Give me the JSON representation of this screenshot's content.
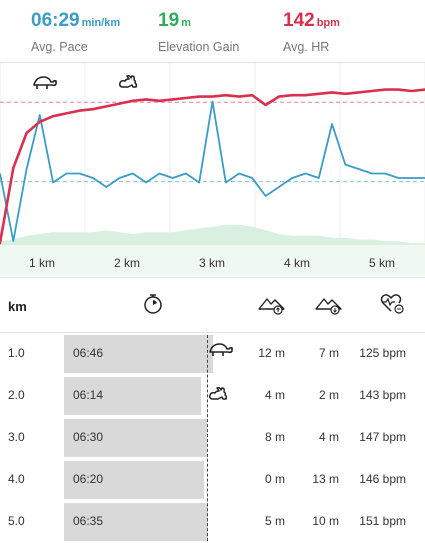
{
  "stats": {
    "pace": {
      "value": "06:29",
      "unit": "min/km",
      "label": "Avg. Pace"
    },
    "elevation": {
      "value": "19",
      "unit": "m",
      "label": "Elevation Gain"
    },
    "hr": {
      "value": "142",
      "unit": "bpm",
      "label": "Avg. HR"
    }
  },
  "colors": {
    "pace": "#3b9cc6",
    "elevation": "#2fae5a",
    "hr": "#d8304e",
    "bar": "#d9d9d9"
  },
  "chart": {
    "x_labels": [
      "1 km",
      "2 km",
      "3 km",
      "4 km",
      "5 km"
    ],
    "markers": [
      {
        "icon": "turtle-icon"
      },
      {
        "icon": "rabbit-icon"
      }
    ]
  },
  "chart_data": {
    "type": "line",
    "x_ticks": [
      "1 km",
      "2 km",
      "3 km",
      "4 km",
      "5 km"
    ],
    "series": [
      {
        "color": "#d8304e",
        "values": [
          40,
          95,
          120,
          128,
          132,
          134,
          136,
          137,
          139,
          141,
          143,
          144,
          143,
          144,
          145,
          146,
          146,
          147,
          146,
          147,
          140,
          146,
          147,
          147,
          148,
          149,
          148,
          149,
          150,
          151,
          151,
          150,
          151
        ]
      },
      {
        "color": "#3b9cc6",
        "values": [
          6.3,
          8.2,
          6.2,
          5.0,
          6.5,
          6.3,
          6.3,
          6.4,
          6.6,
          6.4,
          6.3,
          6.5,
          6.3,
          6.4,
          6.3,
          6.5,
          4.7,
          6.5,
          6.3,
          6.4,
          6.8,
          6.6,
          6.4,
          6.3,
          6.4,
          5.2,
          6.1,
          6.2,
          6.3,
          6.3,
          6.4,
          6.4,
          6.4
        ]
      },
      {
        "color": "#2fae5a",
        "values": [
          2,
          3,
          5,
          6,
          7,
          7,
          7,
          7,
          8,
          7,
          6,
          7,
          7,
          7,
          8,
          9,
          10,
          11,
          11,
          10,
          8,
          6,
          5,
          5,
          5,
          4,
          4,
          3,
          3,
          2,
          2,
          1,
          1
        ]
      }
    ]
  },
  "table": {
    "header": {
      "km": "km",
      "pace_icon": "stopwatch-icon",
      "gain_icon": "elevation-gain-icon",
      "loss_icon": "elevation-loss-icon",
      "hr_icon": "heart-rate-icon"
    },
    "rows": [
      {
        "km": "1.0",
        "pace": "06:46",
        "pace_fraction": 0.99,
        "icon": "turtle-icon",
        "gain": "12 m",
        "loss": "7 m",
        "hr": "125 bpm"
      },
      {
        "km": "2.0",
        "pace": "06:14",
        "pace_fraction": 0.91,
        "icon": "rabbit-icon",
        "gain": "4 m",
        "loss": "2 m",
        "hr": "143 bpm"
      },
      {
        "km": "3.0",
        "pace": "06:30",
        "pace_fraction": 0.95,
        "icon": "",
        "gain": "8 m",
        "loss": "4 m",
        "hr": "147 bpm"
      },
      {
        "km": "4.0",
        "pace": "06:20",
        "pace_fraction": 0.93,
        "icon": "",
        "gain": "0 m",
        "loss": "13 m",
        "hr": "146 bpm"
      },
      {
        "km": "5.0",
        "pace": "06:35",
        "pace_fraction": 0.96,
        "icon": "",
        "gain": "5 m",
        "loss": "10 m",
        "hr": "151 bpm"
      }
    ]
  }
}
